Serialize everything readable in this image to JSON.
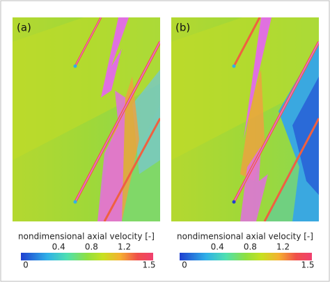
{
  "panels": [
    {
      "label": "(a)"
    },
    {
      "label": "(b)"
    }
  ],
  "colorbar": {
    "title": "nondimensional axial velocity [-]",
    "ticks": [
      0,
      0.4,
      0.8,
      1.2,
      1.5
    ]
  }
}
